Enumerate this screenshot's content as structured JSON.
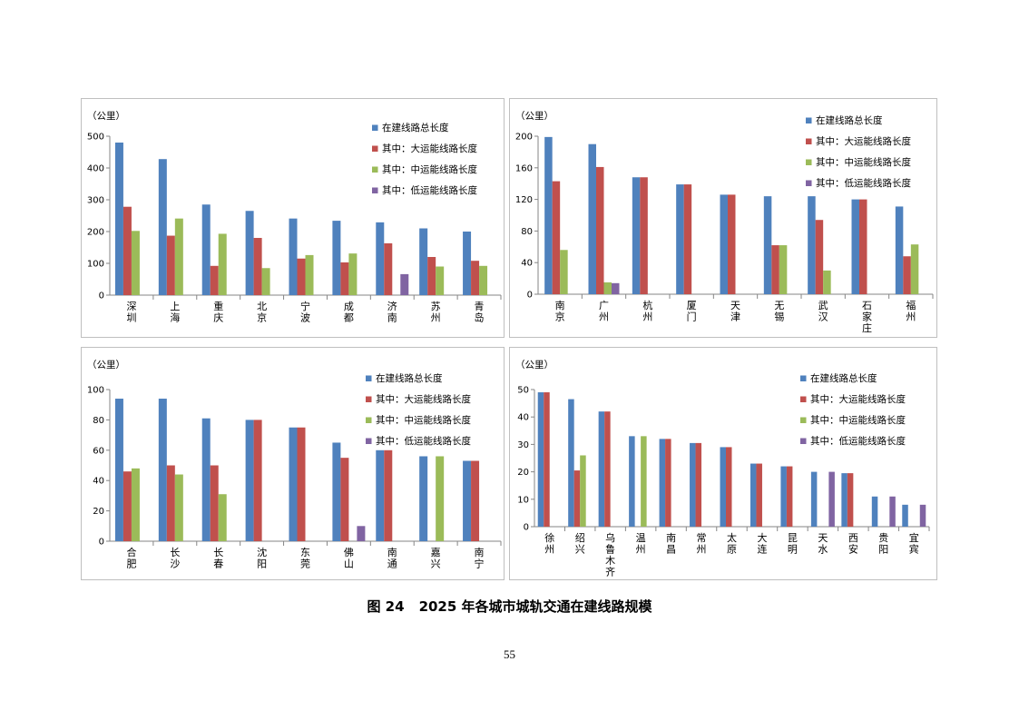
{
  "caption": {
    "figure": "图 24",
    "title": "2025 年各城市城轨交通在建线路规模"
  },
  "page_number": "55",
  "legend_labels": [
    "在建线路总长度",
    "其中：大运能线路长度",
    "其中：中运能线路长度",
    "其中：低运能线路长度"
  ],
  "colors": [
    "#4f81bd",
    "#c0504d",
    "#9bbb59",
    "#8064a2"
  ],
  "chart_data": [
    {
      "type": "bar",
      "ylabel": "（公里）",
      "ylim": [
        0,
        500
      ],
      "yticks": [
        0,
        100,
        200,
        300,
        400,
        500
      ],
      "categories": [
        "深圳",
        "上海",
        "重庆",
        "北京",
        "宁波",
        "成都",
        "济南",
        "苏州",
        "青岛"
      ],
      "series": [
        {
          "name": "在建线路总长度",
          "values": [
            480,
            428,
            285,
            265,
            241,
            234,
            229,
            210,
            200
          ]
        },
        {
          "name": "其中：大运能线路长度",
          "values": [
            278,
            187,
            92,
            180,
            115,
            103,
            163,
            120,
            108
          ]
        },
        {
          "name": "其中：中运能线路长度",
          "values": [
            202,
            241,
            193,
            85,
            126,
            131,
            0,
            90,
            92
          ]
        },
        {
          "name": "其中：低运能线路长度",
          "values": [
            0,
            0,
            0,
            0,
            0,
            0,
            66,
            0,
            0
          ]
        }
      ]
    },
    {
      "type": "bar",
      "ylabel": "（公里）",
      "ylim": [
        0,
        200
      ],
      "yticks": [
        0,
        40,
        80,
        120,
        160,
        200
      ],
      "categories": [
        "南京",
        "广州",
        "杭州",
        "厦门",
        "天津",
        "无锡",
        "武汉",
        "石家庄",
        "福州"
      ],
      "series": [
        {
          "name": "在建线路总长度",
          "values": [
            199,
            190,
            148,
            139,
            126,
            124,
            124,
            120,
            111
          ]
        },
        {
          "name": "其中：大运能线路长度",
          "values": [
            143,
            161,
            148,
            139,
            126,
            62,
            94,
            120,
            48
          ]
        },
        {
          "name": "其中：中运能线路长度",
          "values": [
            56,
            15,
            0,
            0,
            0,
            62,
            30,
            0,
            63
          ]
        },
        {
          "name": "其中：低运能线路长度",
          "values": [
            0,
            14,
            0,
            0,
            0,
            0,
            0,
            0,
            0
          ]
        }
      ]
    },
    {
      "type": "bar",
      "ylabel": "（公里）",
      "ylim": [
        0,
        100
      ],
      "yticks": [
        0,
        20,
        40,
        60,
        80,
        100
      ],
      "categories": [
        "合肥",
        "长沙",
        "长春",
        "沈阳",
        "东莞",
        "佛山",
        "南通",
        "嘉兴",
        "南宁"
      ],
      "series": [
        {
          "name": "在建线路总长度",
          "values": [
            94,
            94,
            81,
            80,
            75,
            65,
            60,
            56,
            53
          ]
        },
        {
          "name": "其中：大运能线路长度",
          "values": [
            46,
            50,
            50,
            80,
            75,
            55,
            60,
            0,
            53
          ]
        },
        {
          "name": "其中：中运能线路长度",
          "values": [
            48,
            44,
            31,
            0,
            0,
            0,
            0,
            56,
            0
          ]
        },
        {
          "name": "其中：低运能线路长度",
          "values": [
            0,
            0,
            0,
            0,
            0,
            10,
            0,
            0,
            0
          ]
        }
      ]
    },
    {
      "type": "bar",
      "ylabel": "（公里）",
      "ylim": [
        0,
        50
      ],
      "yticks": [
        0,
        10,
        20,
        30,
        40,
        50
      ],
      "categories": [
        "徐州",
        "绍兴",
        "乌鲁木齐",
        "温州",
        "南昌",
        "常州",
        "太原",
        "大连",
        "昆明",
        "天水",
        "西安",
        "贵阳",
        "宜宾"
      ],
      "series": [
        {
          "name": "在建线路总长度",
          "values": [
            49,
            46.5,
            42,
            33,
            32,
            30.5,
            29,
            23,
            22,
            20,
            19.5,
            11,
            8
          ]
        },
        {
          "name": "其中：大运能线路长度",
          "values": [
            49,
            20.5,
            42,
            0,
            32,
            30.5,
            29,
            23,
            22,
            0,
            19.5,
            0,
            0
          ]
        },
        {
          "name": "其中：中运能线路长度",
          "values": [
            0,
            26,
            0,
            33,
            0,
            0,
            0,
            0,
            0,
            0,
            0,
            0,
            0
          ]
        },
        {
          "name": "其中：低运能线路长度",
          "values": [
            0,
            0,
            0,
            0,
            0,
            0,
            0,
            0,
            0,
            20,
            0,
            11,
            8
          ]
        }
      ]
    }
  ]
}
